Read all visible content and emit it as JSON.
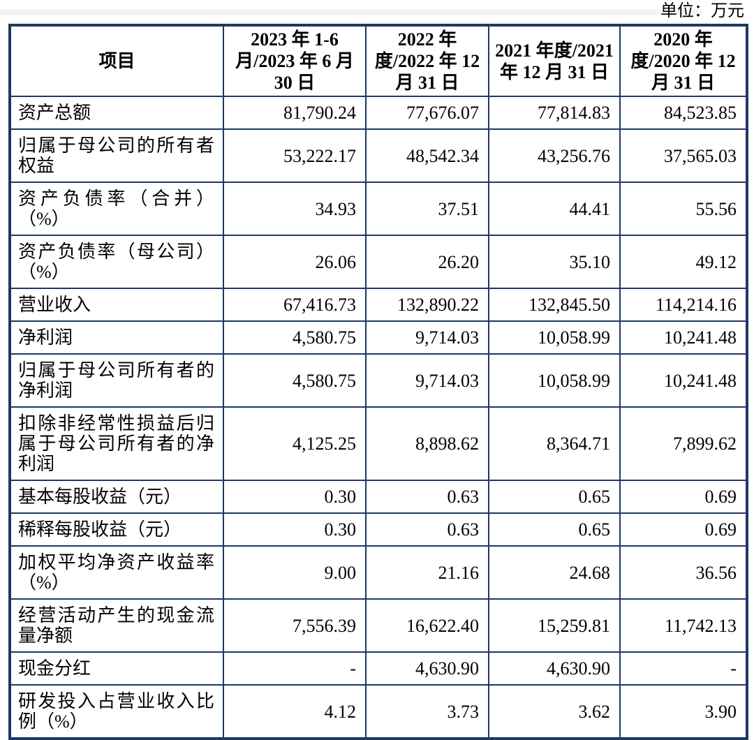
{
  "unit_label": "单位：万元",
  "colors": {
    "table_border": "#1f3864",
    "text": "#000000",
    "background": "#ffffff"
  },
  "table": {
    "columns": [
      "项目",
      "2023 年 1-6 月/2023 年 6 月 30 日",
      "2022 年度/2022 年 12 月 31 日",
      "2021 年度/2021 年 12 月 31 日",
      "2020 年度/2020 年 12 月 31 日"
    ],
    "rows": [
      {
        "label": "资产总额",
        "values": [
          "81,790.24",
          "77,676.07",
          "77,814.83",
          "84,523.85"
        ]
      },
      {
        "label": "归属于母公司的所有者权益",
        "values": [
          "53,222.17",
          "48,542.34",
          "43,256.76",
          "37,565.03"
        ]
      },
      {
        "label": "资产负债率（合并）（%）",
        "values": [
          "34.93",
          "37.51",
          "44.41",
          "55.56"
        ]
      },
      {
        "label": "资产负债率（母公司）（%）",
        "values": [
          "26.06",
          "26.20",
          "35.10",
          "49.12"
        ]
      },
      {
        "label": "营业收入",
        "values": [
          "67,416.73",
          "132,890.22",
          "132,845.50",
          "114,214.16"
        ]
      },
      {
        "label": "净利润",
        "values": [
          "4,580.75",
          "9,714.03",
          "10,058.99",
          "10,241.48"
        ]
      },
      {
        "label": "归属于母公司所有者的净利润",
        "values": [
          "4,580.75",
          "9,714.03",
          "10,058.99",
          "10,241.48"
        ]
      },
      {
        "label": "扣除非经常性损益后归属于母公司所有者的净利润",
        "values": [
          "4,125.25",
          "8,898.62",
          "8,364.71",
          "7,899.62"
        ]
      },
      {
        "label": "基本每股收益（元）",
        "values": [
          "0.30",
          "0.63",
          "0.65",
          "0.69"
        ]
      },
      {
        "label": "稀释每股收益（元）",
        "values": [
          "0.30",
          "0.63",
          "0.65",
          "0.69"
        ]
      },
      {
        "label": "加权平均净资产收益率（%）",
        "values": [
          "9.00",
          "21.16",
          "24.68",
          "36.56"
        ]
      },
      {
        "label": "经营活动产生的现金流量净额",
        "values": [
          "7,556.39",
          "16,622.40",
          "15,259.81",
          "11,742.13"
        ]
      },
      {
        "label": "现金分红",
        "values": [
          "-",
          "4,630.90",
          "4,630.90",
          "-"
        ]
      },
      {
        "label": "研发投入占营业收入比例（%）",
        "values": [
          "4.12",
          "3.73",
          "3.62",
          "3.90"
        ]
      }
    ]
  }
}
